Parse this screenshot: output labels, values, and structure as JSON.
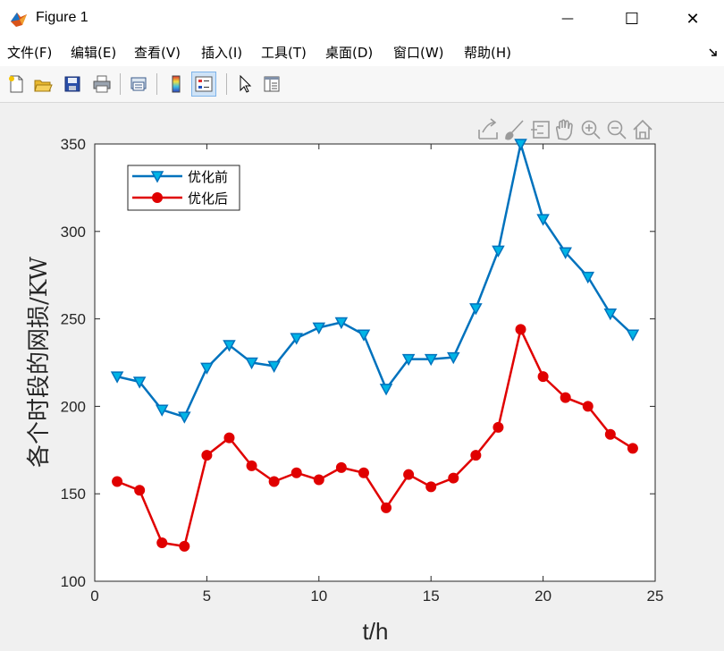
{
  "window": {
    "title": "Figure 1",
    "minimize_glyph": "—",
    "maximize_glyph": "☐",
    "close_glyph": "✕"
  },
  "menu": {
    "items": [
      {
        "label": "文件(F)"
      },
      {
        "label": "编辑(E)"
      },
      {
        "label": "查看(V)"
      },
      {
        "label": "插入(I)"
      },
      {
        "label": "工具(T)"
      },
      {
        "label": "桌面(D)"
      },
      {
        "label": "窗口(W)"
      },
      {
        "label": "帮助(H)"
      }
    ]
  },
  "toolbar": {
    "buttons": [
      "new-figure-icon",
      "open-file-icon",
      "save-icon",
      "print-icon",
      "print-preview-icon",
      "colorbar-icon",
      "legend-icon",
      "pointer-icon",
      "property-inspector-icon"
    ],
    "active": "legend-icon"
  },
  "axes_toolbar": [
    "export-icon",
    "brush-icon",
    "data-tips-icon",
    "pan-icon",
    "zoom-in-icon",
    "zoom-out-icon",
    "home-icon"
  ],
  "chart_data": {
    "type": "line",
    "title": "",
    "xlabel": "t/h",
    "ylabel": "各个时段的网损/KW",
    "xlim": [
      0,
      25
    ],
    "ylim": [
      100,
      350
    ],
    "xticks": [
      0,
      5,
      10,
      15,
      20,
      25
    ],
    "yticks": [
      100,
      150,
      200,
      250,
      300,
      350
    ],
    "grid": false,
    "legend_position": "top-left",
    "x": [
      1,
      2,
      3,
      4,
      5,
      6,
      7,
      8,
      9,
      10,
      11,
      12,
      13,
      14,
      15,
      16,
      17,
      18,
      19,
      20,
      21,
      22,
      23,
      24
    ],
    "series": [
      {
        "name": "优化前",
        "color": "#0072BD",
        "marker": "triangle-down",
        "marker_fill": "#00B4E6",
        "values": [
          217,
          214,
          198,
          194,
          222,
          235,
          225,
          223,
          239,
          245,
          248,
          241,
          210,
          227,
          227,
          228,
          256,
          289,
          350,
          307,
          288,
          274,
          253,
          241
        ]
      },
      {
        "name": "优化后",
        "color": "#E00000",
        "marker": "circle",
        "marker_fill": "#E00000",
        "values": [
          157,
          152,
          122,
          120,
          172,
          182,
          166,
          157,
          162,
          158,
          165,
          162,
          142,
          161,
          154,
          159,
          172,
          188,
          244,
          217,
          205,
          200,
          184,
          176
        ]
      }
    ]
  }
}
